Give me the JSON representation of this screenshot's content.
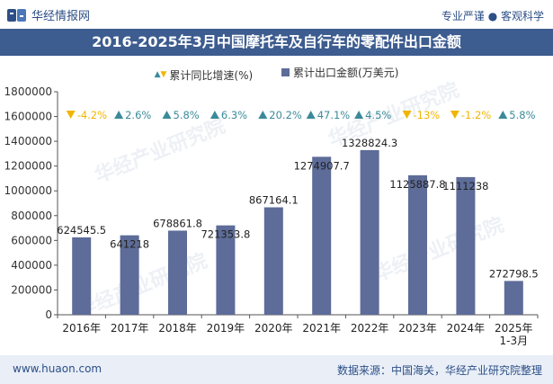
{
  "header": {
    "brand": "华经情报网",
    "tagline": "专业严谨 ● 客观科学"
  },
  "title": "2016-2025年3月中国摩托车及自行车的零配件出口金额",
  "legend": {
    "growth_label": "累计同比增速(%)",
    "export_label": "累计出口金额(万美元)"
  },
  "footer": {
    "website": "www.huaon.com",
    "source": "数据来源：中国海关，华经产业研究院整理"
  },
  "colors": {
    "bar": "#5d6c98",
    "up_marker": "#3a8a9a",
    "down_marker": "#f1b500",
    "title_bg": "#3d5c8f"
  },
  "chart_data": {
    "type": "bar",
    "categories": [
      "2016年",
      "2017年",
      "2018年",
      "2019年",
      "2020年",
      "2021年",
      "2022年",
      "2023年",
      "2024年",
      "2025年\n1-3月"
    ],
    "series": [
      {
        "name": "累计出口金额(万美元)",
        "values": [
          624545.5,
          641218,
          678861.8,
          721353.8,
          867164.1,
          1274907.7,
          1328824.3,
          1125887.8,
          1111238,
          272798.5
        ]
      },
      {
        "name": "累计同比增速(%)",
        "values": [
          -4.2,
          2.6,
          5.8,
          6.3,
          20.2,
          47.1,
          4.5,
          -13,
          -1.2,
          5.8
        ],
        "labels": [
          "-4.2%",
          "2.6%",
          "5.8%",
          "6.3%",
          "20.2%",
          "47.1%",
          "4.5%",
          "-13%",
          "-1.2%",
          "5.8%"
        ]
      }
    ],
    "value_labels": [
      "624545.5",
      "641218",
      "678861.8",
      "721353.8",
      "867164.1",
      "1274907.7",
      "1328824.3",
      "1125887.8",
      "1111238",
      "272798.5"
    ],
    "yticks": [
      "0",
      "200000",
      "400000",
      "600000",
      "800000",
      "1000000",
      "1200000",
      "1400000",
      "1600000",
      "1800000"
    ],
    "ylim": [
      0,
      1800000
    ],
    "grid": false,
    "legend_position": "top"
  },
  "watermark": "华经产业研究院"
}
